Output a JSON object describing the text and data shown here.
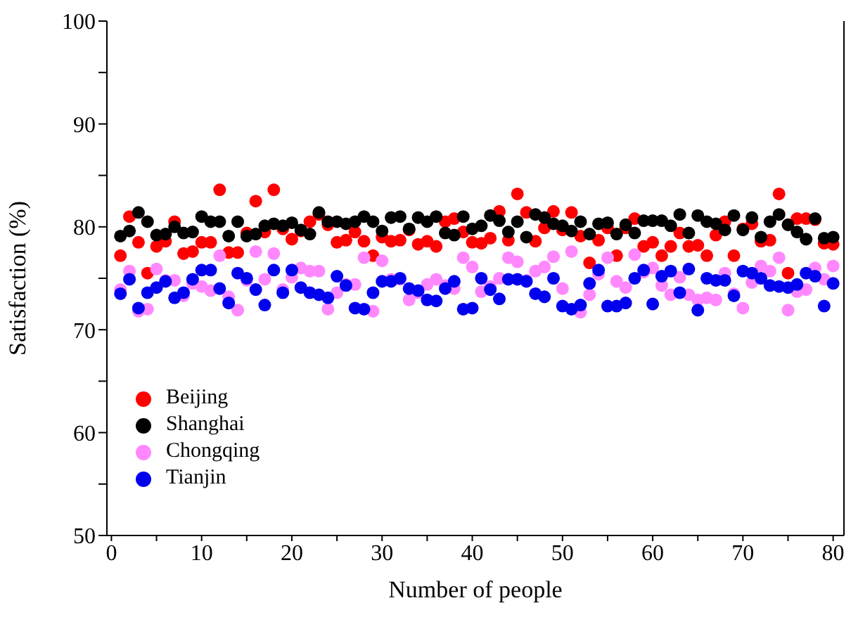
{
  "chart_data": {
    "type": "scatter",
    "xlabel": "Number of people",
    "ylabel": "Satisfaction (%)",
    "x": [
      1,
      2,
      3,
      4,
      5,
      6,
      7,
      8,
      9,
      10,
      11,
      12,
      13,
      14,
      15,
      16,
      17,
      18,
      19,
      20,
      21,
      22,
      23,
      24,
      25,
      26,
      27,
      28,
      29,
      30,
      31,
      32,
      33,
      34,
      35,
      36,
      37,
      38,
      39,
      40,
      41,
      42,
      43,
      44,
      45,
      46,
      47,
      48,
      49,
      50,
      51,
      52,
      53,
      54,
      55,
      56,
      57,
      58,
      59,
      60,
      61,
      62,
      63,
      64,
      65,
      66,
      67,
      68,
      69,
      70,
      71,
      72,
      73,
      74,
      75,
      76,
      77,
      78,
      79,
      80
    ],
    "xlim": [
      -0.5,
      81.2
    ],
    "xticks": [
      0,
      {
        "value": 5,
        "label": null
      },
      10,
      {
        "value": 15,
        "label": null
      },
      20,
      {
        "value": 25,
        "label": null
      },
      30,
      {
        "value": 35,
        "label": null
      },
      40,
      {
        "value": 45,
        "label": null
      },
      50,
      {
        "value": 55,
        "label": null
      },
      60,
      {
        "value": 65,
        "label": null
      },
      70,
      {
        "value": 75,
        "label": null
      },
      80
    ],
    "ylim": [
      50,
      100
    ],
    "yticks": [
      50,
      {
        "value": 55,
        "label": null
      },
      60,
      {
        "value": 65,
        "label": null
      },
      70,
      {
        "value": 75,
        "label": null
      },
      80,
      {
        "value": 85,
        "label": null
      },
      90,
      {
        "value": 95,
        "label": null
      },
      100
    ],
    "marker": "circle",
    "legend": "bottom left",
    "grid": false,
    "series": [
      {
        "name": "Beijing",
        "color": "#ff0000",
        "values": [
          77.2,
          81.0,
          78.5,
          75.5,
          78.1,
          78.6,
          80.5,
          77.4,
          77.6,
          78.5,
          78.5,
          83.6,
          77.5,
          77.5,
          79.4,
          82.5,
          79.5,
          83.6,
          79.8,
          78.8,
          79.6,
          80.5,
          81.2,
          80.2,
          78.5,
          78.7,
          79.5,
          78.6,
          77.2,
          79.0,
          78.6,
          78.7,
          79.7,
          78.3,
          78.6,
          78.1,
          80.5,
          80.8,
          79.5,
          78.5,
          78.4,
          78.9,
          81.5,
          78.7,
          83.2,
          81.4,
          78.6,
          79.9,
          81.5,
          79.7,
          81.4,
          79.1,
          76.5,
          78.7,
          79.9,
          77.2,
          79.9,
          80.8,
          78.1,
          78.5,
          77.2,
          78.1,
          79.4,
          78.1,
          78.2,
          77.2,
          79.2,
          80.5,
          77.2,
          79.8,
          80.3,
          78.6,
          78.7,
          83.2,
          75.5,
          80.8,
          80.8,
          80.7,
          78.4,
          78.3
        ]
      },
      {
        "name": "Shanghai",
        "color": "#000000",
        "values": [
          79.1,
          79.6,
          81.4,
          80.5,
          79.2,
          79.3,
          80.0,
          79.4,
          79.5,
          81.0,
          80.5,
          80.5,
          79.1,
          80.5,
          79.1,
          79.3,
          80.1,
          80.3,
          80.1,
          80.4,
          79.7,
          79.3,
          81.4,
          80.5,
          80.5,
          80.3,
          80.5,
          81.0,
          80.5,
          79.6,
          80.9,
          81.0,
          79.8,
          80.9,
          80.5,
          81.0,
          79.4,
          79.2,
          81.0,
          79.8,
          80.1,
          81.1,
          80.6,
          79.5,
          80.5,
          79.0,
          81.2,
          80.9,
          80.3,
          80.1,
          79.6,
          80.5,
          79.3,
          80.3,
          80.4,
          79.3,
          80.2,
          79.4,
          80.6,
          80.6,
          80.6,
          80.1,
          81.2,
          79.4,
          81.1,
          80.5,
          80.3,
          79.7,
          81.1,
          79.7,
          80.9,
          79.0,
          80.5,
          81.2,
          80.2,
          79.5,
          78.8,
          80.8,
          78.9,
          79.0
        ]
      },
      {
        "name": "Chongqing",
        "color": "#ff88ff",
        "values": [
          73.9,
          75.7,
          71.8,
          72.0,
          75.9,
          74.8,
          74.8,
          73.3,
          74.5,
          74.2,
          73.8,
          77.2,
          73.2,
          71.9,
          74.8,
          77.6,
          74.9,
          77.4,
          73.9,
          75.1,
          76.0,
          75.7,
          75.7,
          72.0,
          73.6,
          74.4,
          74.4,
          77.0,
          71.8,
          76.7,
          74.9,
          74.9,
          72.9,
          73.6,
          74.4,
          74.9,
          74.3,
          74.0,
          77.0,
          76.1,
          73.7,
          74.2,
          75.0,
          77.0,
          76.6,
          74.8,
          75.7,
          76.1,
          77.1,
          74.0,
          77.6,
          71.7,
          73.4,
          75.4,
          77.0,
          74.7,
          74.1,
          77.3,
          75.6,
          76.0,
          74.3,
          73.4,
          75.1,
          73.4,
          72.9,
          73.1,
          72.9,
          75.5,
          73.5,
          72.1,
          74.6,
          76.2,
          75.7,
          77.0,
          71.9,
          73.7,
          73.9,
          76.0,
          74.9,
          76.2
        ]
      },
      {
        "name": "Tianjin",
        "color": "#0000ee",
        "values": [
          73.5,
          74.9,
          72.1,
          73.6,
          74.1,
          74.7,
          73.1,
          73.6,
          74.9,
          75.8,
          75.8,
          74.0,
          72.6,
          75.5,
          75.0,
          73.9,
          72.4,
          75.8,
          73.6,
          75.8,
          74.1,
          73.6,
          73.4,
          73.1,
          75.2,
          74.3,
          72.1,
          72.0,
          73.6,
          74.7,
          74.7,
          75.0,
          74.0,
          73.8,
          72.9,
          72.8,
          74.0,
          74.7,
          72.0,
          72.1,
          75.0,
          73.9,
          73.0,
          74.9,
          74.9,
          74.7,
          73.5,
          73.2,
          75.0,
          72.3,
          72.0,
          72.4,
          74.5,
          75.8,
          72.3,
          72.3,
          72.6,
          75.0,
          75.8,
          72.5,
          75.2,
          75.7,
          73.6,
          75.9,
          71.9,
          75.0,
          74.8,
          74.8,
          73.3,
          75.7,
          75.5,
          75.0,
          74.3,
          74.2,
          74.1,
          74.4,
          75.5,
          75.2,
          72.3,
          74.5
        ]
      }
    ]
  }
}
